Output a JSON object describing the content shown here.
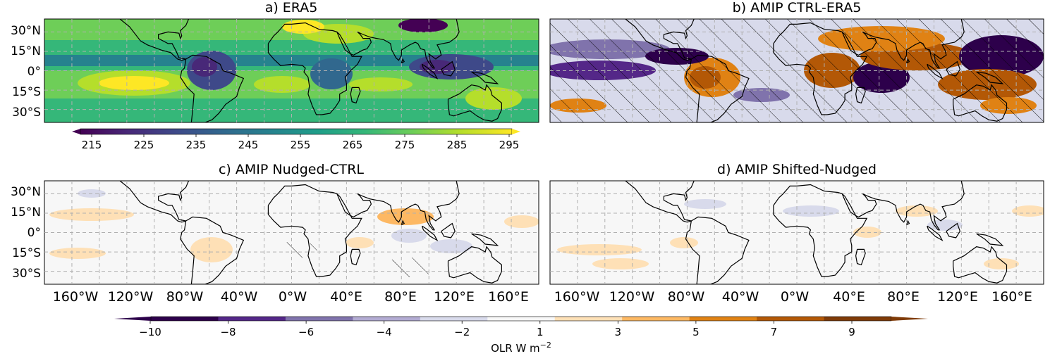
{
  "figure": {
    "panels": [
      {
        "id": "a",
        "title": "a) ERA5",
        "field": "olr_absolute",
        "hatched": false
      },
      {
        "id": "b",
        "title": "b) AMIP CTRL-ERA5",
        "field": "diff_large",
        "hatched": true
      },
      {
        "id": "c",
        "title": "c) AMIP Nudged-CTRL",
        "field": "diff_small",
        "hatched": "partial"
      },
      {
        "id": "d",
        "title": "d) AMIP Shifted-Nudged",
        "field": "diff_smaller",
        "hatched": "partial"
      }
    ],
    "lat_ticks": [
      "30°N",
      "15°N",
      "0°",
      "15°S",
      "30°S"
    ],
    "lon_ticks": [
      "160°W",
      "120°W",
      "80°W",
      "40°W",
      "0°W",
      "40°E",
      "80°E",
      "120°E",
      "160°E"
    ],
    "colorbar_top": {
      "ticks": [
        "215",
        "225",
        "235",
        "245",
        "255",
        "265",
        "275",
        "285",
        "295"
      ],
      "range": [
        210,
        300
      ],
      "colormap": "viridis",
      "extend": "both"
    },
    "colorbar_bottom": {
      "ticks": [
        "−10",
        "−8",
        "−6",
        "−4",
        "−2",
        "1",
        "3",
        "5",
        "7",
        "9"
      ],
      "label_main": "OLR W m",
      "label_exp": "−2",
      "colormap": "PuOr_r",
      "extend": "both"
    },
    "colors": {
      "viridis": [
        "#440154",
        "#482878",
        "#3e4989",
        "#31688e",
        "#26828e",
        "#1f9e89",
        "#35b779",
        "#6ece58",
        "#b5de2b",
        "#fde725"
      ],
      "diverging": [
        "#2d004b",
        "#542788",
        "#8073ac",
        "#b2abd2",
        "#d8daeb",
        "#f7f7f7",
        "#fee0b6",
        "#fdb863",
        "#e08214",
        "#b35806",
        "#7f3b08"
      ],
      "land_outline": "#000000",
      "grid": "#b0b0b0"
    }
  }
}
